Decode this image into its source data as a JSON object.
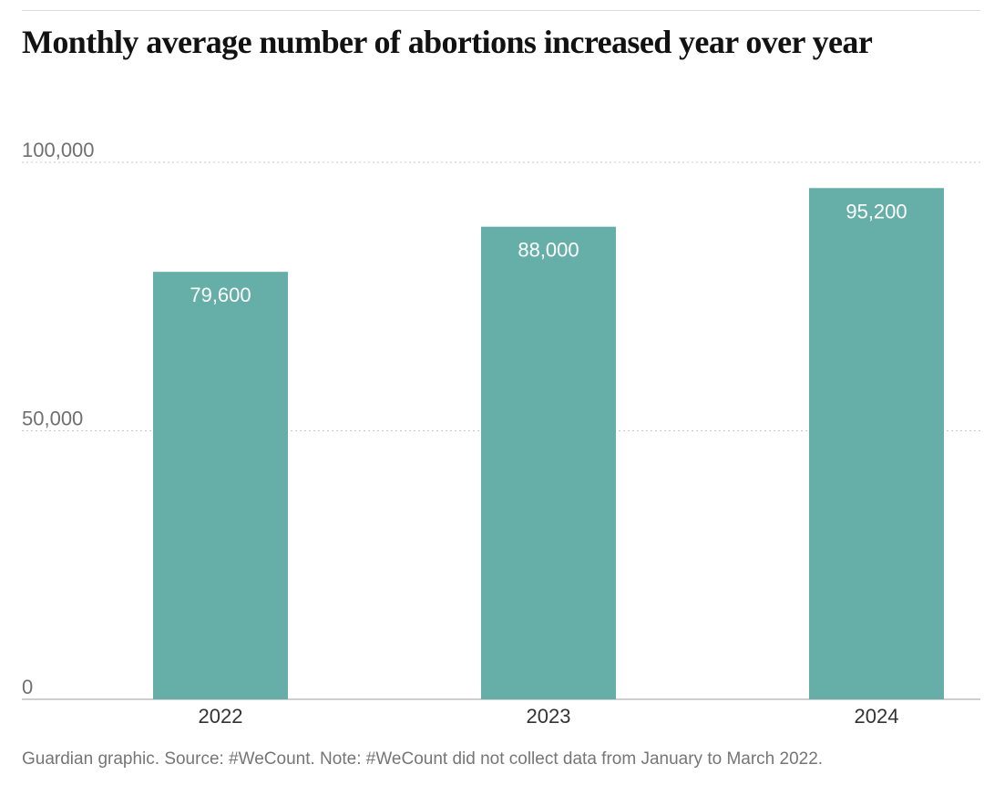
{
  "chart_data": {
    "type": "bar",
    "title": "Monthly average number of abortions increased year over year",
    "categories": [
      "2022",
      "2023",
      "2024"
    ],
    "values": [
      79600,
      88000,
      95200
    ],
    "data_labels": [
      "79,600",
      "88,000",
      "95,200"
    ],
    "xlabel": "",
    "ylabel": "",
    "ylim": [
      0,
      100000
    ],
    "yticks": [
      0,
      50000,
      100000
    ],
    "ytick_labels": [
      "0",
      "50,000",
      "100,000"
    ],
    "grid": true,
    "bar_color": "#66afa9",
    "source": "Guardian graphic. Source: #WeCount. Note: #WeCount did not collect data from January to March 2022."
  }
}
